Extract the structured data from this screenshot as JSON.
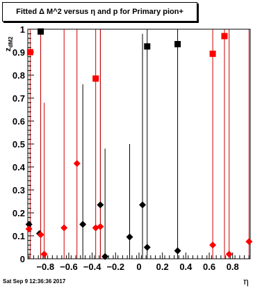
{
  "title": "Fitted Δ M^2 versus η and p for Primary pion+",
  "footer": "Sat Sep  9 12:36:36 2017",
  "chart_data": {
    "type": "scatter",
    "title": "Fitted Δ M^2 versus η and p for Primary pion+",
    "xlabel": "η",
    "ylabel": "z_{dM2}",
    "xlim": [
      -0.95,
      0.95
    ],
    "ylim": [
      0,
      1
    ],
    "x_ticks": [
      "−0.8",
      "−0.6",
      "−0.4",
      "−0.2",
      "0",
      "0.2",
      "0.4",
      "0.6",
      "0.8"
    ],
    "y_ticks": [
      "0",
      "0.1",
      "0.2",
      "0.3",
      "0.4",
      "0.5",
      "0.6",
      "0.7",
      "0.8",
      "0.9",
      "1"
    ],
    "colors": {
      "black": "#000000",
      "red": "#ff0000",
      "red_line": "#cc0000"
    },
    "series": [
      {
        "color": "black",
        "marker": "square",
        "points": [
          {
            "x": -0.84,
            "y": 0.99
          },
          {
            "x": 0.07,
            "y": 0.925
          },
          {
            "x": 0.33,
            "y": 0.935
          }
        ]
      },
      {
        "color": "black",
        "marker": "diamond",
        "points": [
          {
            "x": -0.94,
            "y": 0.15
          },
          {
            "x": -0.85,
            "y": 0.11
          },
          {
            "x": -0.48,
            "y": 0.15
          },
          {
            "x": -0.33,
            "y": 0.235
          },
          {
            "x": -0.29,
            "y": 0.01
          },
          {
            "x": -0.08,
            "y": 0.095
          },
          {
            "x": 0.03,
            "y": 0.235
          },
          {
            "x": 0.07,
            "y": 0.05
          },
          {
            "x": 0.33,
            "y": 0.035
          }
        ]
      },
      {
        "color": "red",
        "marker": "square",
        "points": [
          {
            "x": -0.93,
            "y": 0.9
          },
          {
            "x": -0.37,
            "y": 0.785
          },
          {
            "x": 0.63,
            "y": 0.893
          },
          {
            "x": 0.73,
            "y": 0.97
          }
        ]
      },
      {
        "color": "red",
        "marker": "diamond",
        "points": [
          {
            "x": -0.94,
            "y": 0.13
          },
          {
            "x": -0.84,
            "y": 0.105
          },
          {
            "x": -0.81,
            "y": 0.02
          },
          {
            "x": -0.64,
            "y": 0.135
          },
          {
            "x": -0.53,
            "y": 0.415
          },
          {
            "x": -0.37,
            "y": 0.135
          },
          {
            "x": -0.33,
            "y": 0.14
          },
          {
            "x": 0.63,
            "y": 0.06
          },
          {
            "x": 0.77,
            "y": 0.02
          },
          {
            "x": 0.94,
            "y": 0.075
          }
        ]
      }
    ],
    "error_bars": [
      {
        "color": "black",
        "x": -0.84,
        "y_low": 0,
        "y_high": 1.0
      },
      {
        "color": "black",
        "x": -0.48,
        "y_low": 0,
        "y_high": 0.76
      },
      {
        "color": "black",
        "x": -0.33,
        "y_low": 0,
        "y_high": 1.0
      },
      {
        "color": "black",
        "x": -0.29,
        "y_low": 0,
        "y_high": 0.48
      },
      {
        "color": "black",
        "x": -0.08,
        "y_low": 0,
        "y_high": 0.5
      },
      {
        "color": "black",
        "x": 0.03,
        "y_low": 0,
        "y_high": 0.98
      },
      {
        "color": "black",
        "x": 0.07,
        "y_low": 0,
        "y_high": 1.0
      },
      {
        "color": "black",
        "x": 0.33,
        "y_low": 0,
        "y_high": 1.0
      },
      {
        "color": "red",
        "x": -0.93,
        "y_low": 0,
        "y_high": 1.0
      },
      {
        "color": "red",
        "x": -0.84,
        "y_low": 0,
        "y_high": 1.0
      },
      {
        "color": "red",
        "x": -0.81,
        "y_low": 0,
        "y_high": 0.68
      },
      {
        "color": "red",
        "x": -0.64,
        "y_low": 0,
        "y_high": 1.0
      },
      {
        "color": "red",
        "x": -0.53,
        "y_low": 0,
        "y_high": 1.0
      },
      {
        "color": "red",
        "x": -0.37,
        "y_low": 0,
        "y_high": 1.0
      },
      {
        "color": "red",
        "x": -0.33,
        "y_low": 0,
        "y_high": 1.0
      },
      {
        "color": "red",
        "x": 0.63,
        "y_low": 0,
        "y_high": 1.0
      },
      {
        "color": "red",
        "x": 0.73,
        "y_low": 0,
        "y_high": 1.0
      },
      {
        "color": "red",
        "x": 0.77,
        "y_low": 0,
        "y_high": 1.0
      },
      {
        "color": "red",
        "x": 0.94,
        "y_low": 0,
        "y_high": 1.0
      }
    ]
  }
}
